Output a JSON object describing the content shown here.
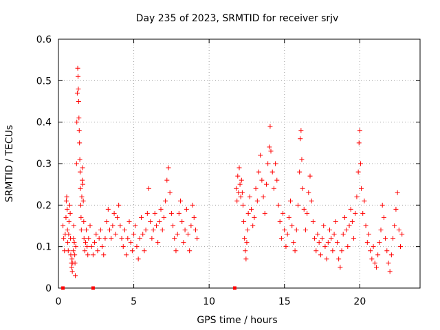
{
  "chart_data": {
    "type": "scatter",
    "title": "Day 235 of 2023, SRMTID for receiver srjv",
    "xlabel": "GPS time / hours",
    "ylabel": "SRMTID / TECUs",
    "xlim": [
      0,
      24
    ],
    "ylim": [
      0,
      0.6
    ],
    "xticks": [
      0,
      5,
      10,
      15,
      20
    ],
    "xtick_labels": [
      "0",
      "5",
      "10",
      "15",
      "20"
    ],
    "yticks": [
      0,
      0.1,
      0.2,
      0.3,
      0.4,
      0.5,
      0.6
    ],
    "ytick_labels": [
      "0",
      "0.1",
      "0.2",
      "0.3",
      "0.4",
      "0.5",
      "0.6"
    ],
    "grid": true,
    "marker": "plus",
    "color": "#ff0000",
    "series": [
      {
        "name": "srjv",
        "points": [
          [
            0.3,
            0.15
          ],
          [
            0.35,
            0.12
          ],
          [
            0.4,
            0.09
          ],
          [
            0.45,
            0.13
          ],
          [
            0.5,
            0.17
          ],
          [
            0.52,
            0.21
          ],
          [
            0.55,
            0.22
          ],
          [
            0.58,
            0.19
          ],
          [
            0.6,
            0.14
          ],
          [
            0.62,
            0.11
          ],
          [
            0.65,
            0.09
          ],
          [
            0.68,
            0.13
          ],
          [
            0.7,
            0.16
          ],
          [
            0.75,
            0.2
          ],
          [
            0.78,
            0.18
          ],
          [
            0.8,
            0.12
          ],
          [
            0.82,
            0.08
          ],
          [
            0.85,
            0.06
          ],
          [
            0.88,
            0.05
          ],
          [
            0.9,
            0.07
          ],
          [
            0.92,
            0.04
          ],
          [
            0.95,
            0.06
          ],
          [
            0.98,
            0.09
          ],
          [
            1.0,
            0.12
          ],
          [
            1.02,
            0.15
          ],
          [
            1.05,
            0.11
          ],
          [
            1.08,
            0.08
          ],
          [
            1.1,
            0.06
          ],
          [
            1.12,
            0.03
          ],
          [
            1.15,
            0.1
          ],
          [
            1.2,
            0.3
          ],
          [
            1.22,
            0.4
          ],
          [
            1.25,
            0.47
          ],
          [
            1.28,
            0.53
          ],
          [
            1.3,
            0.51
          ],
          [
            1.32,
            0.48
          ],
          [
            1.34,
            0.45
          ],
          [
            1.36,
            0.41
          ],
          [
            1.38,
            0.38
          ],
          [
            1.4,
            0.35
          ],
          [
            1.42,
            0.31
          ],
          [
            1.44,
            0.28
          ],
          [
            1.46,
            0.24
          ],
          [
            1.48,
            0.2
          ],
          [
            1.5,
            0.17
          ],
          [
            1.52,
            0.14
          ],
          [
            1.55,
            0.22
          ],
          [
            1.58,
            0.26
          ],
          [
            1.6,
            0.29
          ],
          [
            1.62,
            0.25
          ],
          [
            1.65,
            0.21
          ],
          [
            1.68,
            0.16
          ],
          [
            1.7,
            0.12
          ],
          [
            1.75,
            0.09
          ],
          [
            1.8,
            0.11
          ],
          [
            1.85,
            0.14
          ],
          [
            1.9,
            0.1
          ],
          [
            1.95,
            0.08
          ],
          [
            2.0,
            0.12
          ],
          [
            2.1,
            0.15
          ],
          [
            2.2,
            0.1
          ],
          [
            2.3,
            0.08
          ],
          [
            2.4,
            0.11
          ],
          [
            2.5,
            0.13
          ],
          [
            2.6,
            0.09
          ],
          [
            2.7,
            0.12
          ],
          [
            2.8,
            0.14
          ],
          [
            2.9,
            0.1
          ],
          [
            3.0,
            0.08
          ],
          [
            3.1,
            0.12
          ],
          [
            3.2,
            0.16
          ],
          [
            3.3,
            0.19
          ],
          [
            3.4,
            0.14
          ],
          [
            3.5,
            0.12
          ],
          [
            3.6,
            0.15
          ],
          [
            3.7,
            0.18
          ],
          [
            3.8,
            0.13
          ],
          [
            3.9,
            0.17
          ],
          [
            4.0,
            0.2
          ],
          [
            4.1,
            0.15
          ],
          [
            4.2,
            0.12
          ],
          [
            4.3,
            0.1
          ],
          [
            4.4,
            0.14
          ],
          [
            4.5,
            0.08
          ],
          [
            4.6,
            0.12
          ],
          [
            4.7,
            0.16
          ],
          [
            4.8,
            0.11
          ],
          [
            4.9,
            0.09
          ],
          [
            5.0,
            0.13
          ],
          [
            5.1,
            0.15
          ],
          [
            5.2,
            0.1
          ],
          [
            5.3,
            0.07
          ],
          [
            5.4,
            0.12
          ],
          [
            5.5,
            0.17
          ],
          [
            5.6,
            0.13
          ],
          [
            5.7,
            0.09
          ],
          [
            5.8,
            0.14
          ],
          [
            5.9,
            0.18
          ],
          [
            6.0,
            0.24
          ],
          [
            6.1,
            0.16
          ],
          [
            6.2,
            0.12
          ],
          [
            6.3,
            0.14
          ],
          [
            6.4,
            0.18
          ],
          [
            6.5,
            0.15
          ],
          [
            6.6,
            0.11
          ],
          [
            6.7,
            0.16
          ],
          [
            6.8,
            0.19
          ],
          [
            6.9,
            0.14
          ],
          [
            7.0,
            0.17
          ],
          [
            7.1,
            0.21
          ],
          [
            7.2,
            0.26
          ],
          [
            7.3,
            0.29
          ],
          [
            7.4,
            0.23
          ],
          [
            7.5,
            0.18
          ],
          [
            7.6,
            0.15
          ],
          [
            7.7,
            0.12
          ],
          [
            7.8,
            0.09
          ],
          [
            7.9,
            0.13
          ],
          [
            8.0,
            0.18
          ],
          [
            8.1,
            0.21
          ],
          [
            8.2,
            0.16
          ],
          [
            8.3,
            0.11
          ],
          [
            8.4,
            0.14
          ],
          [
            8.5,
            0.19
          ],
          [
            8.6,
            0.13
          ],
          [
            8.7,
            0.09
          ],
          [
            8.8,
            0.15
          ],
          [
            8.9,
            0.2
          ],
          [
            9.0,
            0.17
          ],
          [
            9.1,
            0.14
          ],
          [
            9.2,
            0.12
          ],
          [
            11.8,
            0.24
          ],
          [
            11.85,
            0.21
          ],
          [
            11.9,
            0.27
          ],
          [
            11.95,
            0.23
          ],
          [
            12.0,
            0.29
          ],
          [
            12.05,
            0.25
          ],
          [
            12.1,
            0.22
          ],
          [
            12.15,
            0.26
          ],
          [
            12.2,
            0.23
          ],
          [
            12.25,
            0.2
          ],
          [
            12.3,
            0.16
          ],
          [
            12.35,
            0.12
          ],
          [
            12.4,
            0.09
          ],
          [
            12.45,
            0.07
          ],
          [
            12.5,
            0.11
          ],
          [
            12.55,
            0.14
          ],
          [
            12.6,
            0.18
          ],
          [
            12.7,
            0.22
          ],
          [
            12.8,
            0.19
          ],
          [
            12.9,
            0.15
          ],
          [
            13.0,
            0.17
          ],
          [
            13.1,
            0.24
          ],
          [
            13.2,
            0.21
          ],
          [
            13.3,
            0.28
          ],
          [
            13.4,
            0.32
          ],
          [
            13.5,
            0.26
          ],
          [
            13.6,
            0.22
          ],
          [
            13.7,
            0.18
          ],
          [
            13.8,
            0.25
          ],
          [
            13.9,
            0.3
          ],
          [
            14.0,
            0.34
          ],
          [
            14.05,
            0.39
          ],
          [
            14.1,
            0.33
          ],
          [
            14.2,
            0.28
          ],
          [
            14.3,
            0.24
          ],
          [
            14.4,
            0.3
          ],
          [
            14.5,
            0.26
          ],
          [
            14.6,
            0.2
          ],
          [
            14.7,
            0.16
          ],
          [
            14.8,
            0.12
          ],
          [
            14.9,
            0.18
          ],
          [
            15.0,
            0.14
          ],
          [
            15.1,
            0.1
          ],
          [
            15.2,
            0.13
          ],
          [
            15.3,
            0.17
          ],
          [
            15.4,
            0.21
          ],
          [
            15.5,
            0.15
          ],
          [
            15.6,
            0.11
          ],
          [
            15.7,
            0.09
          ],
          [
            15.8,
            0.14
          ],
          [
            15.9,
            0.2
          ],
          [
            16.0,
            0.28
          ],
          [
            16.05,
            0.36
          ],
          [
            16.1,
            0.38
          ],
          [
            16.15,
            0.31
          ],
          [
            16.2,
            0.24
          ],
          [
            16.3,
            0.19
          ],
          [
            16.4,
            0.14
          ],
          [
            16.5,
            0.18
          ],
          [
            16.6,
            0.23
          ],
          [
            16.7,
            0.27
          ],
          [
            16.8,
            0.21
          ],
          [
            16.9,
            0.16
          ],
          [
            17.0,
            0.12
          ],
          [
            17.1,
            0.09
          ],
          [
            17.2,
            0.13
          ],
          [
            17.3,
            0.11
          ],
          [
            17.4,
            0.08
          ],
          [
            17.5,
            0.12
          ],
          [
            17.6,
            0.15
          ],
          [
            17.7,
            0.1
          ],
          [
            17.8,
            0.07
          ],
          [
            17.9,
            0.11
          ],
          [
            18.0,
            0.14
          ],
          [
            18.1,
            0.12
          ],
          [
            18.2,
            0.09
          ],
          [
            18.3,
            0.13
          ],
          [
            18.4,
            0.16
          ],
          [
            18.5,
            0.11
          ],
          [
            18.6,
            0.07
          ],
          [
            18.7,
            0.05
          ],
          [
            18.8,
            0.09
          ],
          [
            18.9,
            0.13
          ],
          [
            19.0,
            0.17
          ],
          [
            19.1,
            0.14
          ],
          [
            19.2,
            0.1
          ],
          [
            19.3,
            0.15
          ],
          [
            19.4,
            0.19
          ],
          [
            19.5,
            0.16
          ],
          [
            19.6,
            0.12
          ],
          [
            19.7,
            0.18
          ],
          [
            19.8,
            0.22
          ],
          [
            19.9,
            0.28
          ],
          [
            19.95,
            0.35
          ],
          [
            20.0,
            0.38
          ],
          [
            20.05,
            0.3
          ],
          [
            20.1,
            0.24
          ],
          [
            20.2,
            0.18
          ],
          [
            20.3,
            0.21
          ],
          [
            20.4,
            0.15
          ],
          [
            20.5,
            0.11
          ],
          [
            20.6,
            0.13
          ],
          [
            20.7,
            0.09
          ],
          [
            20.8,
            0.07
          ],
          [
            20.9,
            0.1
          ],
          [
            21.0,
            0.06
          ],
          [
            21.1,
            0.05
          ],
          [
            21.2,
            0.08
          ],
          [
            21.3,
            0.11
          ],
          [
            21.4,
            0.14
          ],
          [
            21.5,
            0.2
          ],
          [
            21.6,
            0.17
          ],
          [
            21.7,
            0.12
          ],
          [
            21.8,
            0.09
          ],
          [
            21.9,
            0.06
          ],
          [
            22.0,
            0.04
          ],
          [
            22.1,
            0.08
          ],
          [
            22.2,
            0.12
          ],
          [
            22.3,
            0.15
          ],
          [
            22.4,
            0.19
          ],
          [
            22.5,
            0.23
          ],
          [
            22.6,
            0.14
          ],
          [
            22.7,
            0.1
          ],
          [
            22.8,
            0.13
          ]
        ]
      }
    ],
    "gaps_marker_points": [
      [
        0.3,
        0
      ],
      [
        2.3,
        0
      ],
      [
        11.7,
        0
      ]
    ]
  }
}
